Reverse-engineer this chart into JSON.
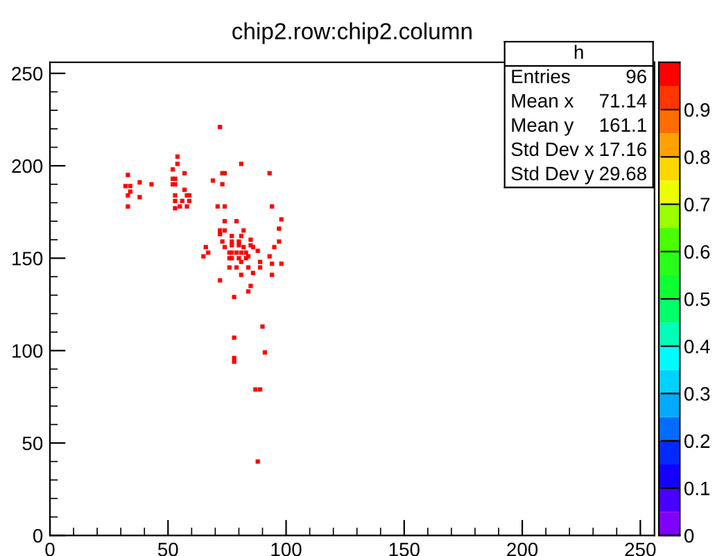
{
  "chart_data": {
    "type": "scatter",
    "title": "chip2.row:chip2.column",
    "x": [
      33,
      32,
      34,
      34,
      33,
      33,
      38,
      38,
      43,
      72,
      54,
      54,
      52,
      57,
      52,
      53,
      52,
      53,
      57,
      59,
      58,
      53,
      56,
      59,
      53,
      55,
      53,
      58,
      69,
      73,
      73,
      74,
      81,
      93,
      71,
      74,
      94,
      98,
      97,
      97,
      95,
      74,
      79,
      72,
      74,
      72,
      77,
      82,
      81,
      73,
      77,
      80,
      85,
      85,
      82,
      66,
      65,
      67,
      77,
      80,
      74,
      86,
      88,
      76,
      77,
      79,
      81,
      83,
      84,
      76,
      77,
      80,
      81,
      83,
      89,
      93,
      94,
      98,
      76,
      79,
      84,
      89,
      81,
      86,
      94,
      72,
      85,
      84,
      78,
      90,
      78,
      91,
      78,
      78,
      87,
      89,
      88
    ],
    "values": [
      195,
      189,
      189,
      186,
      184,
      178,
      191,
      183,
      190,
      221,
      205,
      201,
      198,
      196,
      193,
      193,
      190,
      190,
      187,
      184,
      184,
      184,
      181,
      181,
      181,
      178,
      177,
      178,
      192,
      190,
      196,
      196,
      201,
      196,
      178,
      178,
      178,
      171,
      166,
      159,
      156,
      170,
      170,
      165,
      165,
      163,
      162,
      165,
      162,
      159,
      159,
      159,
      160,
      157,
      156,
      156,
      151,
      153,
      157,
      157,
      156,
      156,
      154,
      153,
      153,
      153,
      153,
      153,
      151,
      150,
      150,
      150,
      148,
      150,
      148,
      151,
      147,
      147,
      145,
      145,
      145,
      145,
      141,
      142,
      141,
      138,
      135,
      132,
      129,
      113,
      107,
      99,
      96,
      94,
      79,
      79,
      40
    ],
    "color": "#ff0000",
    "marker": "square",
    "xlim": [
      0,
      256
    ],
    "ylim": [
      0,
      256
    ],
    "xticks": [
      0,
      50,
      100,
      150,
      200,
      250
    ],
    "yticks": [
      0,
      50,
      100,
      150,
      200,
      250
    ],
    "clim": [
      0,
      1
    ],
    "cticks": [
      0,
      0.1,
      0.2,
      0.3,
      0.4,
      0.5,
      0.6,
      0.7,
      0.8,
      0.9
    ],
    "grid": false,
    "annotations": [
      "h",
      "Entries",
      "96",
      "Mean x",
      "71.14",
      "Mean y",
      "161.1",
      "Std Dev x",
      "17.16",
      "Std Dev y",
      "29.68"
    ]
  }
}
